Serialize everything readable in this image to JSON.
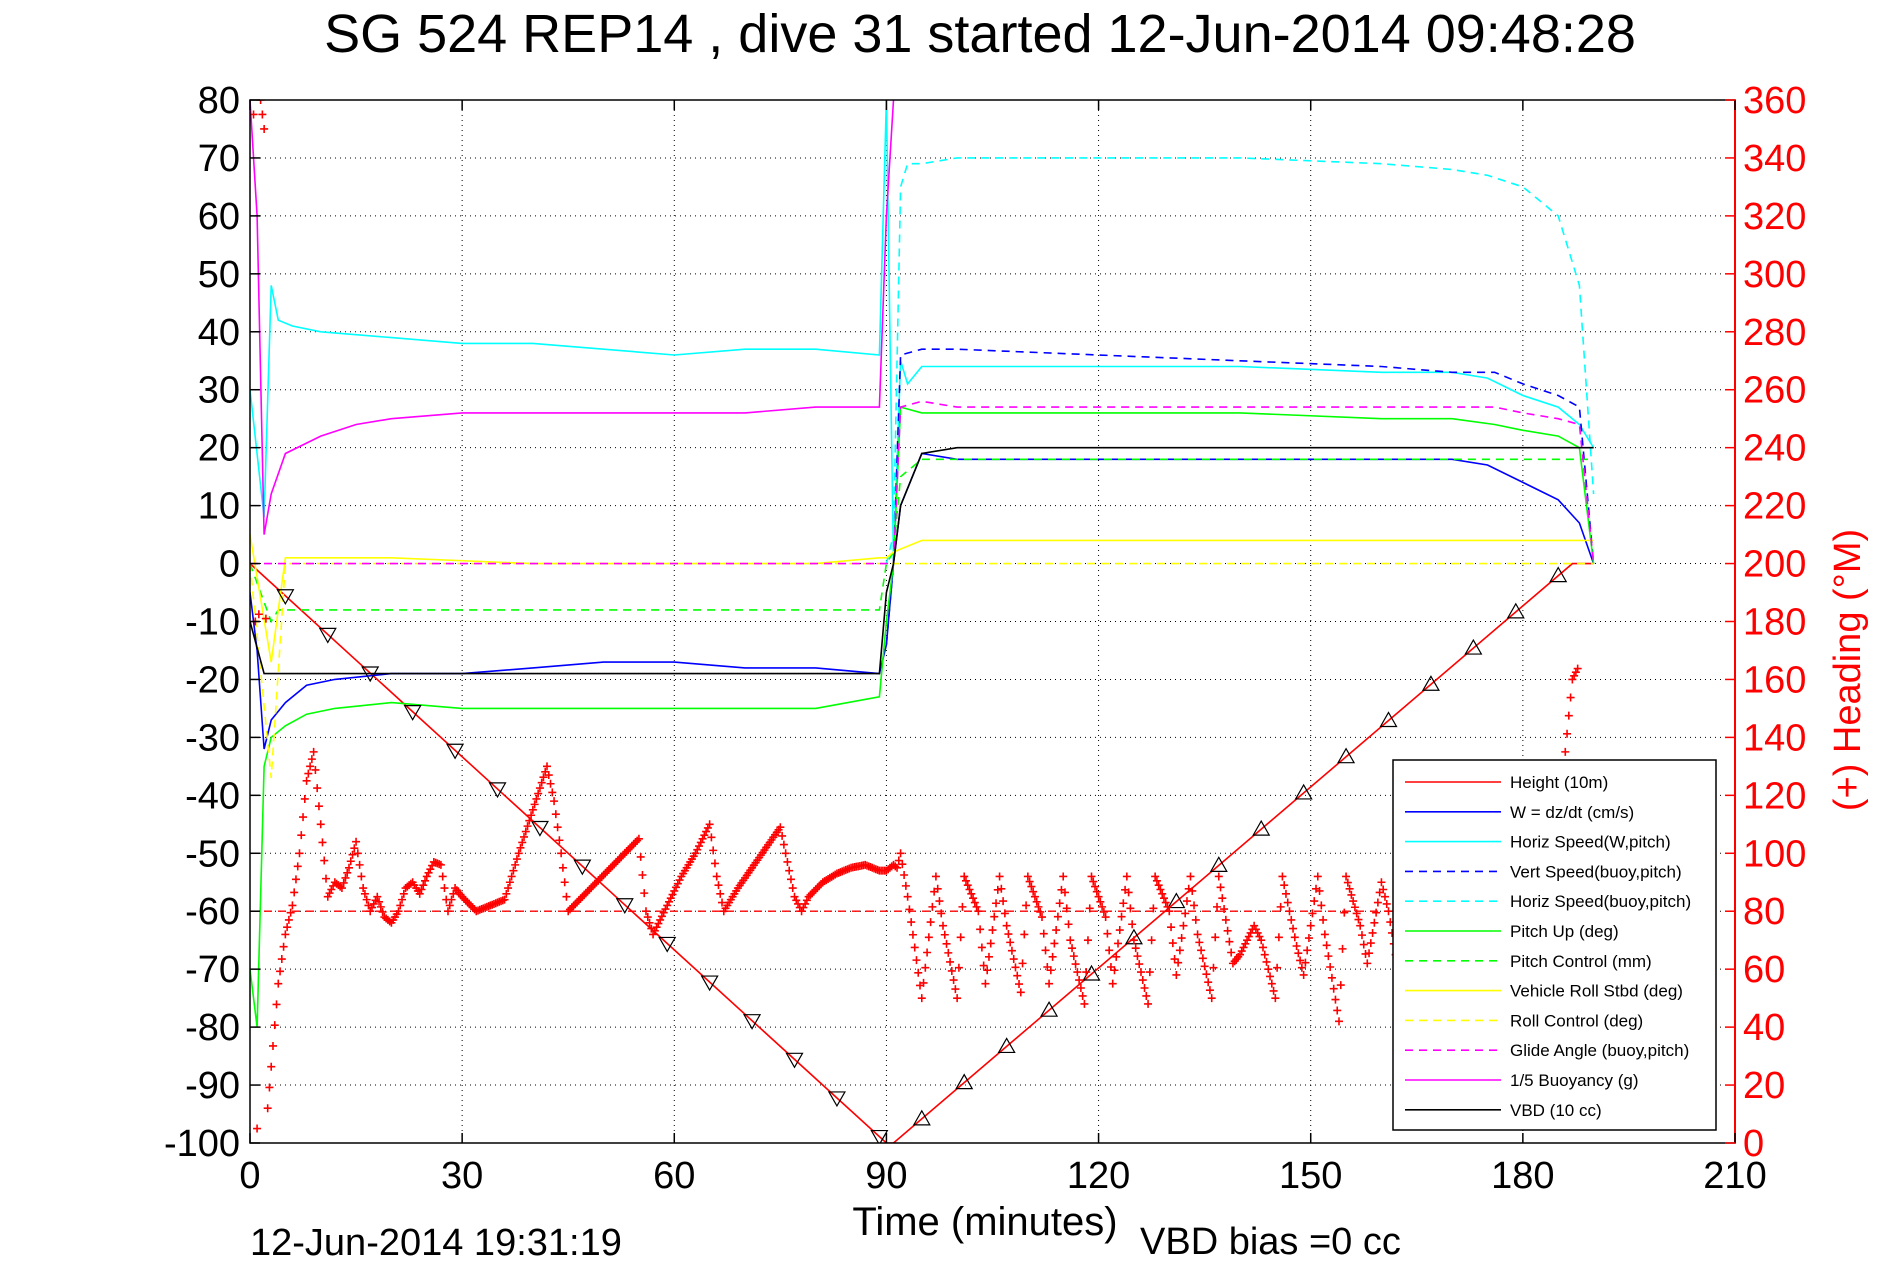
{
  "chart_data": {
    "type": "line",
    "title": "SG 524   REP14  , dive 31 started 12-Jun-2014 09:48:28",
    "xlabel": "Time (minutes)",
    "ylabel": "",
    "y2label": "(+) Heading (°M)",
    "footer_left": "12-Jun-2014 19:31:19",
    "footer_right": "VBD bias =0 cc",
    "xlim": [
      0,
      210
    ],
    "ylim": [
      -100,
      80
    ],
    "y2lim": [
      0,
      360
    ],
    "xticks": [
      0,
      30,
      60,
      90,
      120,
      150,
      180,
      210
    ],
    "yticks": [
      80,
      70,
      60,
      50,
      40,
      30,
      20,
      10,
      0,
      -10,
      -20,
      -30,
      -40,
      -50,
      -60,
      -70,
      -80,
      -90,
      -100
    ],
    "y2ticks": [
      360,
      340,
      320,
      300,
      280,
      260,
      240,
      220,
      200,
      180,
      160,
      140,
      120,
      100,
      80,
      60,
      40,
      20,
      0
    ],
    "grid": true,
    "legend_position": "lower-right",
    "colors": {
      "red": "#ff0000",
      "blue": "#0000ff",
      "cyan": "#00ffff",
      "green": "#00ff00",
      "yellow": "#ffff00",
      "magenta": "#ff00ff",
      "black": "#000000"
    },
    "series": [
      {
        "name": "Height (10m)",
        "color": "#ff0000",
        "style": "solid",
        "x": [
          0,
          90,
          91,
          187,
          190
        ],
        "y": [
          0,
          -100,
          -100,
          0,
          0
        ]
      },
      {
        "name": "W = dz/dt (cm/s)",
        "color": "#0000ff",
        "style": "solid",
        "x": [
          0,
          1,
          2,
          3,
          5,
          8,
          12,
          20,
          30,
          40,
          50,
          60,
          70,
          80,
          89,
          90,
          91,
          92,
          95,
          100,
          120,
          140,
          160,
          170,
          175,
          180,
          185,
          188,
          190
        ],
        "y": [
          -5,
          -15,
          -32,
          -27,
          -24,
          -21,
          -20,
          -19,
          -19,
          -18,
          -17,
          -17,
          -18,
          -18,
          -19,
          -14,
          0,
          10,
          19,
          18,
          18,
          18,
          18,
          18,
          17,
          14,
          11,
          7,
          0
        ]
      },
      {
        "name": "Horiz Speed(W,pitch)",
        "color": "#00ffff",
        "style": "solid",
        "x": [
          0,
          2,
          3,
          4,
          6,
          10,
          20,
          30,
          40,
          50,
          60,
          70,
          80,
          89,
          90,
          91,
          92,
          93,
          95,
          100,
          120,
          140,
          160,
          170,
          175,
          180,
          185,
          188,
          190
        ],
        "y": [
          30,
          8,
          48,
          42,
          41,
          40,
          39,
          38,
          38,
          37,
          36,
          37,
          37,
          36,
          80,
          0,
          35,
          31,
          34,
          34,
          34,
          34,
          33,
          33,
          32,
          29,
          27,
          24,
          20
        ]
      },
      {
        "name": "Vert Speed(buoy,pitch)",
        "color": "#0000ff",
        "style": "dashed",
        "x": [
          90,
          91,
          92,
          95,
          100,
          120,
          140,
          160,
          170,
          176,
          180,
          185,
          188,
          190
        ],
        "y": [
          -14,
          0,
          36,
          37,
          37,
          36,
          35,
          34,
          33,
          33,
          31,
          29,
          27,
          0
        ]
      },
      {
        "name": "Horiz Speed(buoy,pitch)",
        "color": "#00ffff",
        "style": "dashed",
        "x": [
          90,
          91,
          92,
          93,
          95,
          100,
          120,
          140,
          160,
          170,
          175,
          180,
          185,
          188,
          190
        ],
        "y": [
          0,
          5,
          65,
          69,
          69,
          70,
          70,
          70,
          69,
          68,
          67,
          65,
          60,
          48,
          12
        ]
      },
      {
        "name": "Pitch Up (deg)",
        "color": "#00ff00",
        "style": "solid",
        "x": [
          0,
          1,
          2,
          3,
          5,
          8,
          12,
          20,
          30,
          40,
          50,
          60,
          70,
          80,
          89,
          90,
          91,
          92,
          95,
          100,
          120,
          140,
          160,
          170,
          176,
          180,
          185,
          188,
          190
        ],
        "y": [
          -70,
          -80,
          -35,
          -30,
          -28,
          -26,
          -25,
          -24,
          -25,
          -25,
          -25,
          -25,
          -25,
          -25,
          -23,
          -10,
          0,
          27,
          26,
          26,
          26,
          26,
          25,
          25,
          24,
          23,
          22,
          20,
          0
        ]
      },
      {
        "name": "Pitch Control (mm)",
        "color": "#00ff00",
        "style": "dashed",
        "x": [
          0,
          3,
          4,
          10,
          20,
          40,
          60,
          80,
          89,
          90,
          91,
          92,
          95,
          120,
          150,
          170,
          180,
          190
        ],
        "y": [
          0,
          -10,
          -8,
          -8,
          -8,
          -8,
          -8,
          -8,
          -8,
          0,
          2,
          15,
          18,
          18,
          18,
          18,
          18,
          18
        ]
      },
      {
        "name": "Vehicle Roll Stbd (deg)",
        "color": "#ffff00",
        "style": "solid",
        "x": [
          0,
          3,
          5,
          8,
          20,
          40,
          60,
          80,
          89,
          90,
          91,
          95,
          120,
          150,
          170,
          180,
          190
        ],
        "y": [
          5,
          -17,
          1,
          1,
          1,
          0,
          0,
          0,
          1,
          1,
          2,
          4,
          4,
          4,
          4,
          4,
          4
        ]
      },
      {
        "name": "Roll Control (deg)",
        "color": "#ffff00",
        "style": "dashed",
        "x": [
          0,
          3,
          5,
          8,
          20,
          40,
          60,
          80,
          89,
          90,
          91,
          95,
          120,
          150,
          170,
          180,
          190
        ],
        "y": [
          0,
          -37,
          0,
          0,
          0,
          0,
          0,
          0,
          0,
          0,
          0,
          0,
          0,
          0,
          0,
          0,
          0
        ]
      },
      {
        "name": "Glide Angle (buoy,pitch)",
        "color": "#ff00ff",
        "style": "dashed",
        "x": [
          0,
          90,
          91,
          92,
          95,
          100,
          120,
          140,
          160,
          170,
          176,
          180,
          185,
          188,
          190
        ],
        "y": [
          0,
          0,
          0,
          27,
          28,
          27,
          27,
          27,
          27,
          27,
          27,
          26,
          25,
          24,
          0
        ]
      },
      {
        "name": "1/5 Buoyancy (g)",
        "color": "#ff00ff",
        "style": "solid",
        "x": [
          0,
          1,
          2,
          3,
          5,
          10,
          15,
          20,
          30,
          40,
          50,
          60,
          70,
          80,
          89,
          90,
          91,
          92,
          93
        ],
        "y": [
          80,
          60,
          5,
          12,
          19,
          22,
          24,
          25,
          26,
          26,
          26,
          26,
          26,
          27,
          27,
          60,
          80,
          90,
          100
        ]
      },
      {
        "name": "VBD (10 cc)",
        "color": "#000000",
        "style": "solid",
        "x": [
          0,
          2,
          3,
          10,
          20,
          40,
          60,
          80,
          89,
          90,
          91,
          92,
          95,
          100,
          120,
          150,
          175,
          188,
          190
        ],
        "y": [
          -10,
          -19,
          -19,
          -19,
          -19,
          -19,
          -19,
          -19,
          -19,
          -5,
          0,
          10,
          19,
          20,
          20,
          20,
          20,
          20,
          20
        ]
      }
    ],
    "heading": {
      "name": "Heading",
      "color": "#ff0000",
      "marker": "+",
      "axis": "right",
      "mean": 80,
      "x": [
        0.5,
        1,
        1.5,
        2,
        2.5,
        4,
        5,
        6,
        7,
        8,
        9,
        10,
        11,
        12,
        13,
        14,
        15,
        16,
        17,
        18,
        19,
        20,
        21,
        22,
        23,
        24,
        25,
        26,
        27,
        28,
        29,
        30,
        32,
        34,
        36,
        38,
        40,
        42,
        43,
        44,
        45,
        47,
        49,
        51,
        53,
        55,
        56,
        57,
        59,
        61,
        63,
        65,
        66,
        67,
        69,
        71,
        73,
        75,
        77,
        78,
        79,
        81,
        83,
        85,
        87,
        89,
        90,
        91,
        91.5,
        92,
        93,
        95,
        97,
        98,
        100,
        101,
        103,
        104,
        106,
        107,
        109,
        110,
        112,
        113,
        115,
        116,
        118,
        119,
        121,
        122,
        124,
        125,
        127,
        128,
        130,
        131,
        133,
        134,
        136,
        137,
        139,
        140,
        142,
        143,
        145,
        146,
        148,
        149,
        151,
        152,
        154,
        155,
        157,
        158,
        160,
        161,
        163,
        164,
        166,
        168,
        170,
        172,
        174,
        176,
        178,
        180,
        183,
        185,
        186,
        187,
        188
      ],
      "y": [
        355,
        5,
        360,
        350,
        12,
        55,
        72,
        82,
        100,
        125,
        135,
        110,
        85,
        90,
        88,
        95,
        104,
        88,
        80,
        85,
        78,
        76,
        80,
        88,
        90,
        86,
        92,
        97,
        96,
        80,
        88,
        85,
        80,
        82,
        84,
        100,
        115,
        130,
        118,
        100,
        80,
        85,
        90,
        95,
        100,
        105,
        80,
        72,
        82,
        92,
        100,
        110,
        92,
        80,
        88,
        95,
        102,
        109,
        85,
        80,
        85,
        90,
        93,
        95,
        96,
        94,
        94,
        96,
        95,
        100,
        85,
        50,
        92,
        75,
        50,
        92,
        80,
        55,
        92,
        75,
        52,
        92,
        78,
        55,
        92,
        70,
        48,
        92,
        78,
        55,
        92,
        70,
        48,
        92,
        80,
        58,
        92,
        72,
        50,
        92,
        62,
        65,
        75,
        70,
        50,
        92,
        68,
        58,
        92,
        72,
        42,
        92,
        75,
        62,
        90,
        80,
        50,
        92,
        55,
        45,
        92,
        78,
        45,
        92,
        85,
        55,
        80,
        95,
        135,
        160,
        165
      ]
    }
  },
  "legend": {
    "entries": [
      {
        "label": "Height (10m)",
        "color": "#ff0000",
        "dash": false
      },
      {
        "label": "W = dz/dt (cm/s)",
        "color": "#0000ff",
        "dash": false
      },
      {
        "label": "Horiz Speed(W,pitch)",
        "color": "#00ffff",
        "dash": false
      },
      {
        "label": "Vert Speed(buoy,pitch)",
        "color": "#0000ff",
        "dash": true
      },
      {
        "label": "Horiz Speed(buoy,pitch)",
        "color": "#00ffff",
        "dash": true
      },
      {
        "label": "Pitch Up (deg)",
        "color": "#00ff00",
        "dash": false
      },
      {
        "label": "Pitch Control (mm)",
        "color": "#00ff00",
        "dash": true
      },
      {
        "label": "Vehicle Roll Stbd (deg)",
        "color": "#ffff00",
        "dash": false
      },
      {
        "label": "Roll Control (deg)",
        "color": "#ffff00",
        "dash": true
      },
      {
        "label": "Glide Angle (buoy,pitch)",
        "color": "#ff00ff",
        "dash": true
      },
      {
        "label": "1/5 Buoyancy (g)",
        "color": "#ff00ff",
        "dash": false
      },
      {
        "label": "VBD (10 cc)",
        "color": "#000000",
        "dash": false
      }
    ]
  }
}
